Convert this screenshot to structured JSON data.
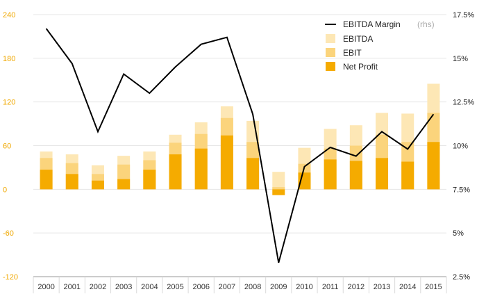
{
  "chart_data": {
    "type": "bar",
    "categories": [
      "2000",
      "2001",
      "2002",
      "2003",
      "2004",
      "2005",
      "2006",
      "2007",
      "2008",
      "2009",
      "2010",
      "2011",
      "2012",
      "2013",
      "2014",
      "2015"
    ],
    "series": [
      {
        "name": "EBITDA",
        "type": "bar",
        "axis": "left",
        "color": "#fde7b5",
        "values": [
          52,
          48,
          33,
          46,
          52,
          75,
          92,
          114,
          94,
          24,
          57,
          83,
          88,
          105,
          104,
          145
        ]
      },
      {
        "name": "EBIT",
        "type": "bar",
        "axis": "left",
        "color": "#fbd47c",
        "values": [
          43,
          36,
          21,
          34,
          40,
          64,
          76,
          98,
          65,
          3,
          35,
          56,
          60,
          75,
          65,
          105
        ]
      },
      {
        "name": "Net Profit",
        "type": "bar",
        "axis": "left",
        "color": "#f5ab00",
        "values": [
          27,
          21,
          12,
          14,
          27,
          48,
          56,
          74,
          43,
          -8,
          23,
          41,
          39,
          43,
          38,
          65
        ]
      },
      {
        "name": "EBITDA Margin",
        "note": "(rhs)",
        "type": "line",
        "axis": "right",
        "color": "#000000",
        "values": [
          16.7,
          14.7,
          10.8,
          14.1,
          13.0,
          14.5,
          15.8,
          16.2,
          11.8,
          3.3,
          8.8,
          9.9,
          9.4,
          10.8,
          9.8,
          11.8
        ]
      }
    ],
    "y_left": {
      "ticks": [
        "240",
        "180",
        "120",
        "60",
        "0",
        "-60",
        "-120"
      ],
      "ylim": [
        -120,
        240
      ]
    },
    "y_right": {
      "ticks": [
        "17.5%",
        "15%",
        "12.5%",
        "10%",
        "7.5%",
        "5%",
        "2.5%"
      ],
      "ylim": [
        2.5,
        17.5
      ]
    },
    "grid": true,
    "legend_placement": "top-right",
    "colors": {
      "left_axis_labels": "#f0a800",
      "gridline": "#e6e6e6",
      "axis_line": "#999999"
    }
  }
}
